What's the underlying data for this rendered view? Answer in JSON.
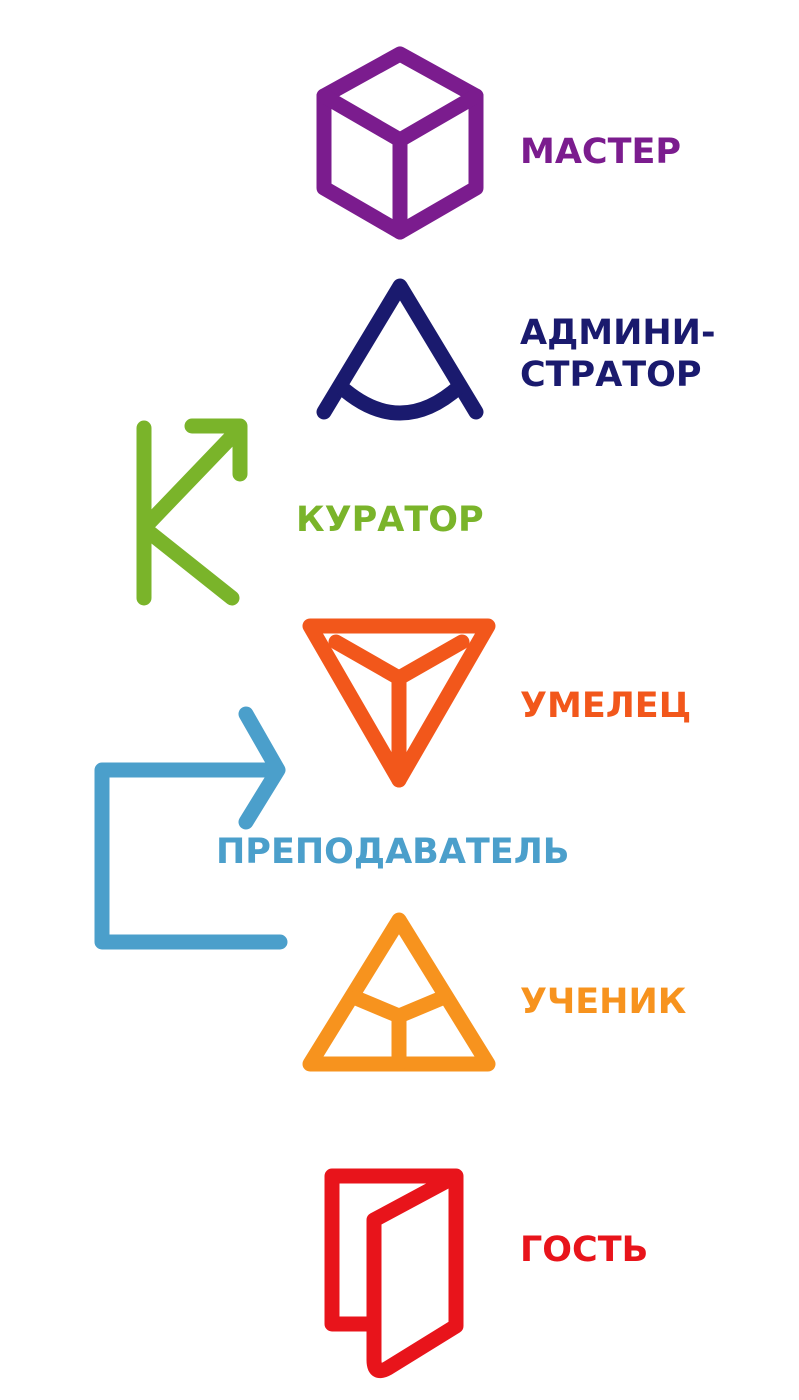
{
  "roles": {
    "master": {
      "label": "МАСТЕР",
      "icon": "cube-icon",
      "color": "#7b1c8e"
    },
    "administrator": {
      "line1": "АДМИНИ-",
      "line2": "СТРАТОР",
      "icon": "arch-a-icon",
      "color": "#1a1a6e"
    },
    "curator": {
      "label": "КУРАТОР",
      "icon": "k-arrow-icon",
      "color": "#7ab42a"
    },
    "skilled": {
      "label": "УМЕЛЕЦ",
      "icon": "inverted-triangle-icon",
      "color": "#f2571b"
    },
    "teacher": {
      "label": "ПРЕПОДАВАТЕЛЬ",
      "icon": "bracket-arrow-icon",
      "color": "#4b9fcb"
    },
    "student": {
      "label": "УЧЕНИК",
      "icon": "triangle-icon",
      "color": "#f7931e"
    },
    "guest": {
      "label": "ГОСТЬ",
      "icon": "open-door-icon",
      "color": "#e8141b"
    }
  }
}
